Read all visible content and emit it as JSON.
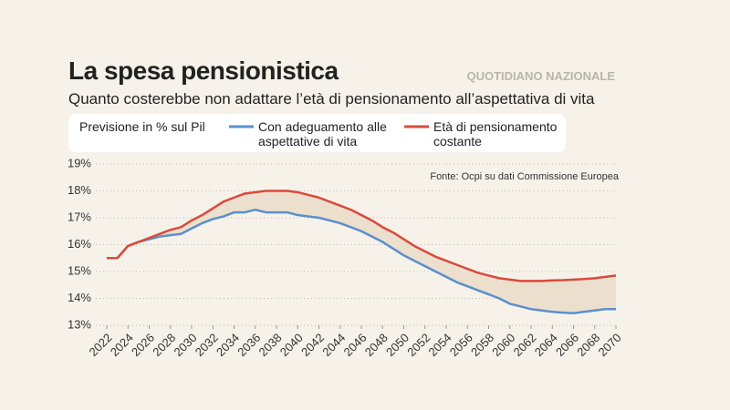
{
  "header": {
    "title": "La spesa pensionistica",
    "brand": "QUOTIDIANO NAZIONALE",
    "subtitle": "Quanto costerebbe non adattare l’età di pensionamento all’aspettativa di vita"
  },
  "chart_data": {
    "type": "line",
    "legend_title": "Previsione in % sul Pil",
    "source": "Fonte: Ocpi su dati Commissione Europea",
    "x": [
      2022,
      2023,
      2024,
      2025,
      2026,
      2027,
      2028,
      2029,
      2030,
      2031,
      2032,
      2033,
      2034,
      2035,
      2036,
      2037,
      2038,
      2039,
      2040,
      2041,
      2042,
      2043,
      2044,
      2045,
      2046,
      2047,
      2048,
      2049,
      2050,
      2051,
      2052,
      2053,
      2054,
      2055,
      2056,
      2057,
      2058,
      2059,
      2060,
      2061,
      2062,
      2063,
      2064,
      2065,
      2066,
      2067,
      2068,
      2069,
      2070
    ],
    "series": [
      {
        "name": "Con adeguamento alle aspettative di vita",
        "color": "#5b8fcb",
        "values": [
          15.5,
          15.5,
          15.95,
          16.1,
          16.2,
          16.3,
          16.35,
          16.4,
          16.6,
          16.8,
          16.95,
          17.05,
          17.2,
          17.2,
          17.3,
          17.2,
          17.2,
          17.2,
          17.1,
          17.05,
          17.0,
          16.9,
          16.8,
          16.65,
          16.5,
          16.3,
          16.1,
          15.85,
          15.6,
          15.4,
          15.2,
          15.0,
          14.8,
          14.6,
          14.45,
          14.3,
          14.15,
          14.0,
          13.8,
          13.7,
          13.6,
          13.55,
          13.5,
          13.47,
          13.45,
          13.5,
          13.55,
          13.6,
          13.6
        ]
      },
      {
        "name": "Età di pensionamento costante",
        "color": "#d94a3d",
        "values": [
          15.5,
          15.5,
          15.95,
          16.1,
          16.25,
          16.4,
          16.55,
          16.65,
          16.9,
          17.1,
          17.35,
          17.6,
          17.75,
          17.9,
          17.95,
          18.0,
          18.0,
          18.0,
          17.95,
          17.85,
          17.75,
          17.6,
          17.45,
          17.3,
          17.1,
          16.9,
          16.65,
          16.45,
          16.2,
          15.95,
          15.75,
          15.55,
          15.4,
          15.25,
          15.1,
          14.95,
          14.85,
          14.75,
          14.7,
          14.65,
          14.65,
          14.65,
          14.67,
          14.68,
          14.7,
          14.72,
          14.75,
          14.8,
          14.85
        ]
      }
    ],
    "fill_between": "#ecdfcd",
    "xlim": [
      2022,
      2070
    ],
    "xticks": [
      2022,
      2024,
      2026,
      2028,
      2030,
      2032,
      2034,
      2036,
      2038,
      2040,
      2042,
      2044,
      2046,
      2048,
      2050,
      2052,
      2054,
      2056,
      2058,
      2060,
      2062,
      2064,
      2066,
      2068,
      2070
    ],
    "ylim": [
      13,
      19
    ],
    "yticks": [
      {
        "value": 13,
        "label": "13%"
      },
      {
        "value": 14,
        "label": "14%"
      },
      {
        "value": 15,
        "label": "15%"
      },
      {
        "value": 16,
        "label": "16%"
      },
      {
        "value": 17,
        "label": "17%"
      },
      {
        "value": 18,
        "label": "18%"
      },
      {
        "value": 19,
        "label": "19%"
      }
    ],
    "grid": true
  }
}
